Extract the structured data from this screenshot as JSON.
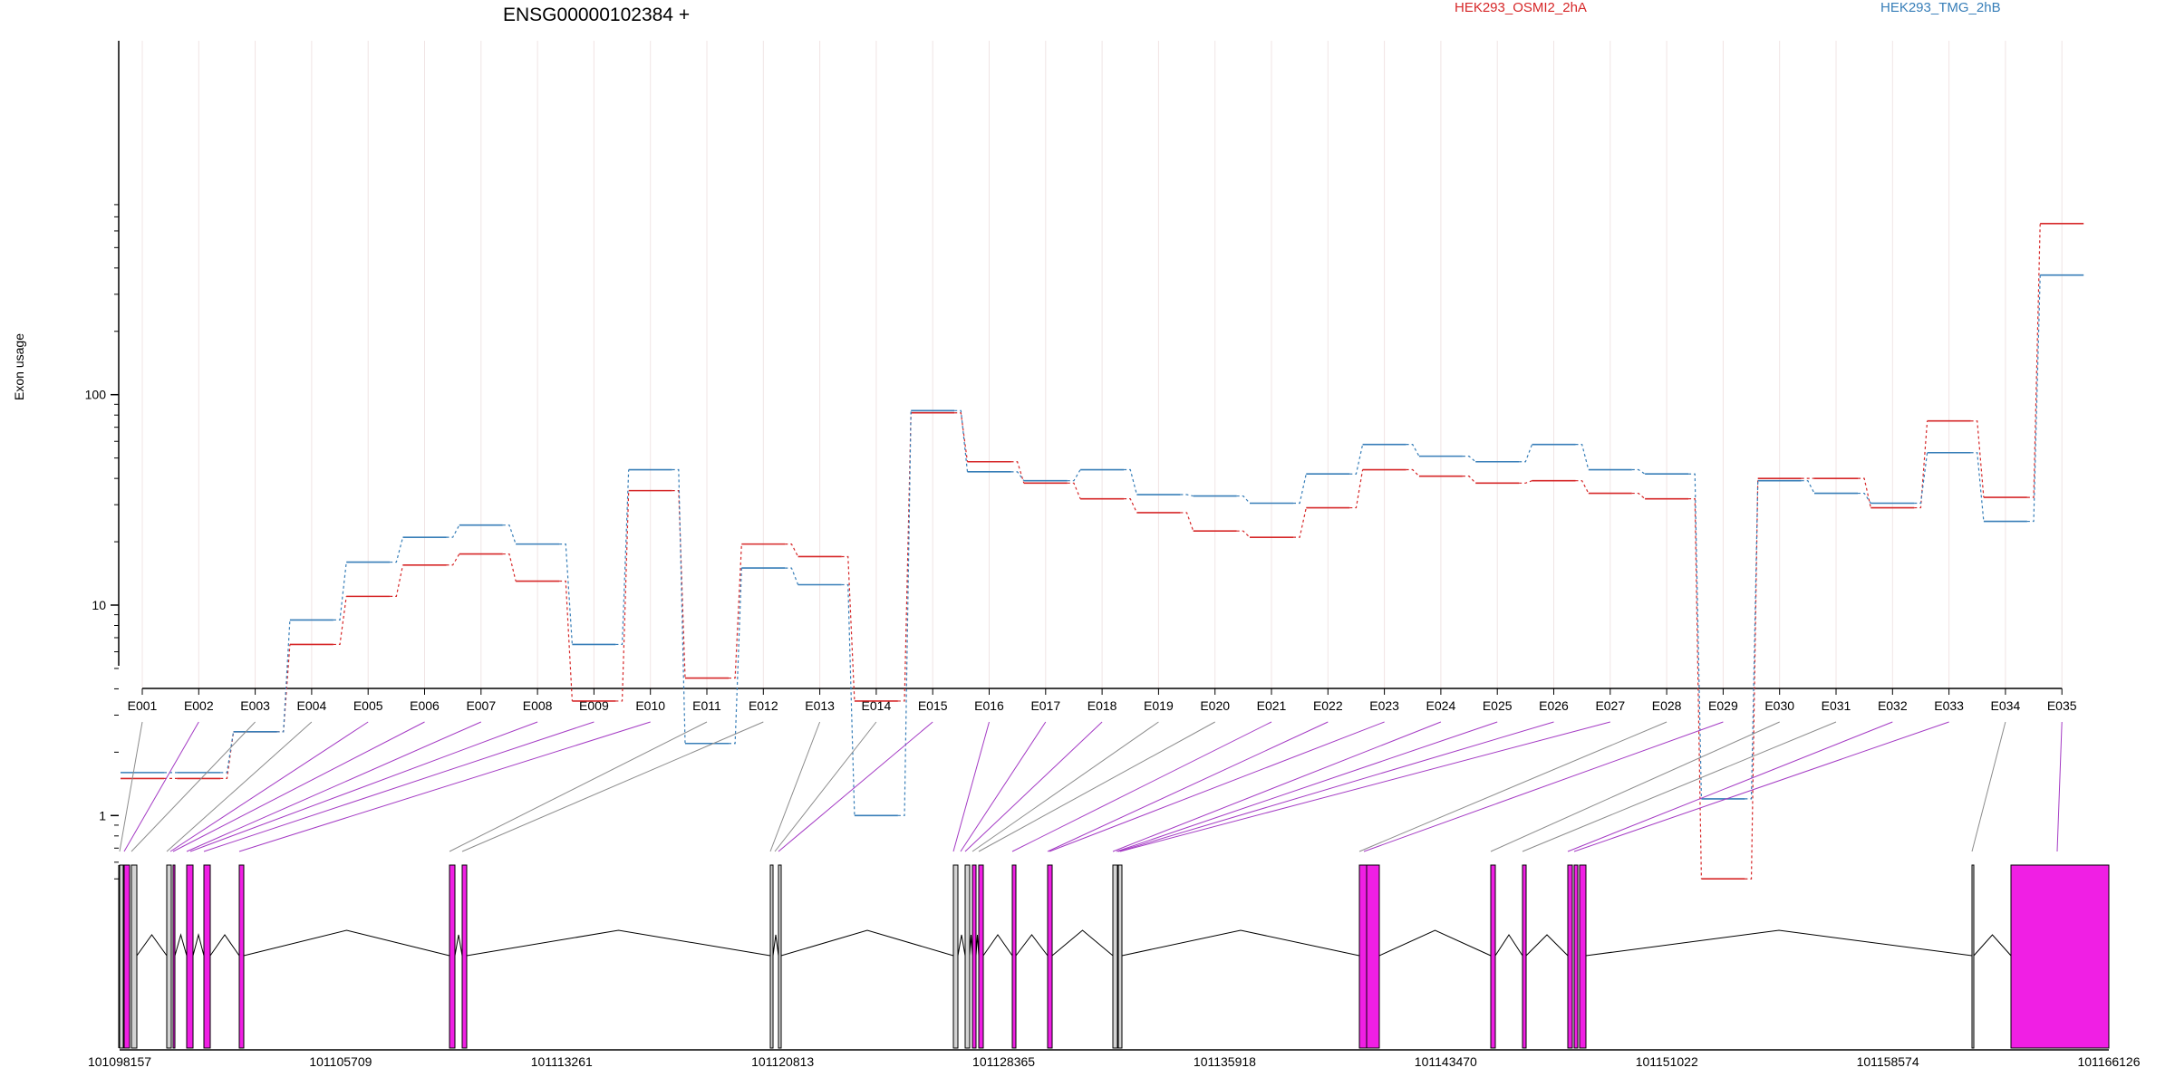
{
  "chart_data": {
    "type": "line",
    "title": "ENSG00000102384 +",
    "ylabel": "Exon usage",
    "yscale": "log",
    "ylim": [
      0.5,
      800
    ],
    "y_ticks": [
      1,
      10,
      100
    ],
    "y_tick_labels": [
      "1",
      "10",
      "100"
    ],
    "grid": "vertical, light",
    "legend": "top-right",
    "categories": [
      "E001",
      "E002",
      "E003",
      "E004",
      "E005",
      "E006",
      "E007",
      "E008",
      "E009",
      "E010",
      "E011",
      "E012",
      "E013",
      "E014",
      "E015",
      "E016",
      "E017",
      "E018",
      "E019",
      "E020",
      "E021",
      "E022",
      "E023",
      "E024",
      "E025",
      "E026",
      "E027",
      "E028",
      "E029",
      "E030",
      "E031",
      "E032",
      "E033",
      "E034",
      "E035"
    ],
    "series": [
      {
        "name": "HEK293_OSMI2_2hA",
        "color": "#d62728",
        "values": [
          1.5,
          1.5,
          2.5,
          6.5,
          11,
          15.5,
          17.5,
          13,
          3.5,
          35,
          4.5,
          19.5,
          17,
          3.5,
          82,
          48,
          38,
          32,
          27.5,
          22.5,
          21,
          29,
          44,
          41,
          38,
          39,
          34,
          32,
          0.5,
          40,
          40,
          29,
          75,
          32.5,
          650
        ]
      },
      {
        "name": "HEK293_TMG_2hB",
        "color": "#377eb8",
        "values": [
          1.6,
          1.6,
          2.5,
          8.5,
          16,
          21,
          24,
          19.5,
          6.5,
          44,
          2.2,
          15,
          12.5,
          1,
          84,
          43,
          39,
          44,
          33.5,
          33,
          30.5,
          42,
          58,
          51,
          48,
          58,
          44,
          42,
          1.2,
          39,
          34,
          30.5,
          53,
          25,
          370
        ]
      }
    ],
    "genomic_axis": {
      "tick_labels": [
        "101098157",
        "101105709",
        "101113261",
        "101120813",
        "101128365",
        "101135918",
        "101143470",
        "101151022",
        "101158574",
        "101166126"
      ]
    },
    "exon_highlight": [
      "E002",
      "E005",
      "E006",
      "E007",
      "E008",
      "E009",
      "E010",
      "E015",
      "E016",
      "E017",
      "E018",
      "E021",
      "E022",
      "E023",
      "E024",
      "E025",
      "E026",
      "E027",
      "E029",
      "E032",
      "E033",
      "E035"
    ],
    "highlight_color": "#f01fe4",
    "normal_exon_color": "#d3d3d3"
  }
}
